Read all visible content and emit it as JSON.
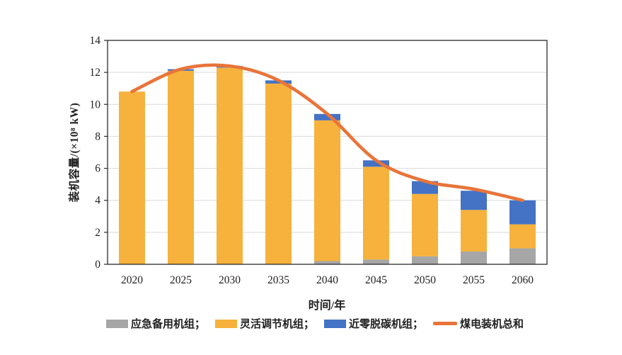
{
  "chart_data": {
    "type": "bar",
    "stacked": true,
    "title": "",
    "xlabel": "时间/年",
    "ylabel": "装机容量/(×10⁸ kW)",
    "categories": [
      "2020",
      "2025",
      "2030",
      "2035",
      "2040",
      "2045",
      "2050",
      "2055",
      "2060"
    ],
    "series": [
      {
        "name": "应急备用机组",
        "color": "#a6a6a6",
        "values": [
          0,
          0,
          0,
          0,
          0.2,
          0.3,
          0.5,
          0.8,
          1.0
        ]
      },
      {
        "name": "灵活调节机组",
        "color": "#f6b23c",
        "values": [
          10.8,
          12.1,
          12.3,
          11.3,
          8.8,
          5.8,
          3.9,
          2.6,
          1.5
        ]
      },
      {
        "name": "近零脱碳机组",
        "color": "#4472c4",
        "values": [
          0,
          0.1,
          0.1,
          0.2,
          0.4,
          0.4,
          0.8,
          1.2,
          1.5
        ]
      }
    ],
    "line_series": {
      "name": "煤电装机总和",
      "color": "#e8743a",
      "values": [
        10.8,
        12.2,
        12.4,
        11.5,
        9.4,
        6.5,
        5.2,
        4.7,
        4.0
      ]
    },
    "ylim": [
      0,
      14
    ],
    "ytick_step": 2,
    "grid": true,
    "gridline_color": "#d9d9d9",
    "axis_color": "#2b2b2b",
    "legend_position": "bottom"
  },
  "legend": {
    "items": [
      {
        "label": "应急备用机组；",
        "swatch": "rect",
        "color": "#a6a6a6"
      },
      {
        "label": "灵活调节机组；",
        "swatch": "rect",
        "color": "#f6b23c"
      },
      {
        "label": "近零脱碳机组；",
        "swatch": "rect",
        "color": "#4472c4"
      },
      {
        "label": "煤电装机总和",
        "swatch": "line",
        "color": "#e8743a"
      }
    ]
  }
}
